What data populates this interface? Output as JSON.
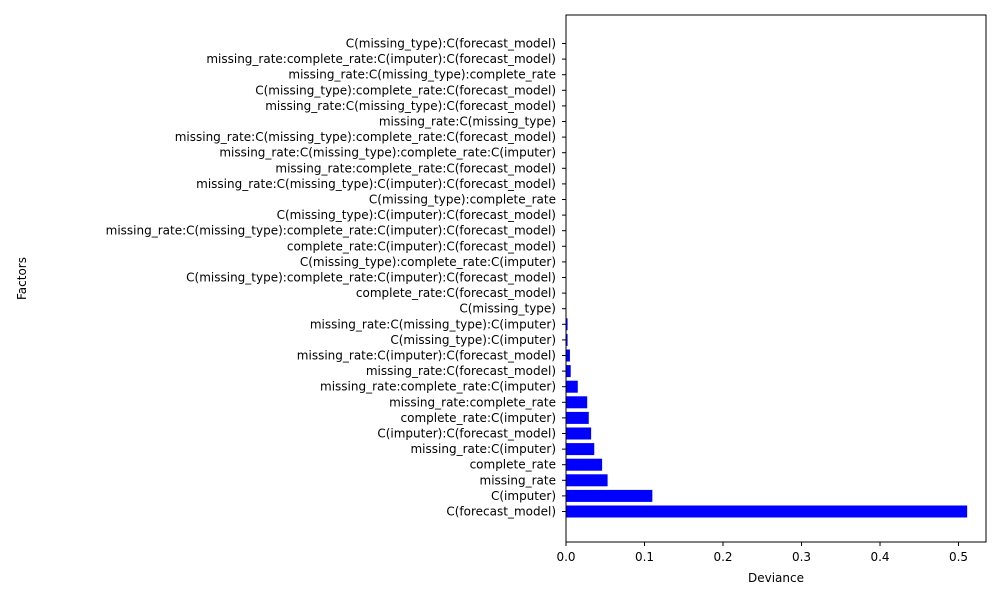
{
  "chart_data": {
    "type": "bar",
    "orientation": "horizontal",
    "xlabel": "Deviance",
    "ylabel": "Factors",
    "xlim": [
      0,
      0.535
    ],
    "xticks": [
      "0.0",
      "0.1",
      "0.2",
      "0.3",
      "0.4",
      "0.5"
    ],
    "xtick_values": [
      0,
      0.1,
      0.2,
      0.3,
      0.4,
      0.5
    ],
    "bar_color": "#0000ff",
    "grid": false,
    "categories": [
      "C(forecast_model)",
      "C(imputer)",
      "missing_rate",
      "complete_rate",
      "missing_rate:C(imputer)",
      "C(imputer):C(forecast_model)",
      "complete_rate:C(imputer)",
      "missing_rate:complete_rate",
      "missing_rate:complete_rate:C(imputer)",
      "missing_rate:C(forecast_model)",
      "missing_rate:C(imputer):C(forecast_model)",
      "C(missing_type):C(imputer)",
      "missing_rate:C(missing_type):C(imputer)",
      "C(missing_type)",
      "complete_rate:C(forecast_model)",
      "C(missing_type):complete_rate:C(imputer):C(forecast_model)",
      "C(missing_type):complete_rate:C(imputer)",
      "complete_rate:C(imputer):C(forecast_model)",
      "missing_rate:C(missing_type):complete_rate:C(imputer):C(forecast_model)",
      "C(missing_type):C(imputer):C(forecast_model)",
      "C(missing_type):complete_rate",
      "missing_rate:C(missing_type):C(imputer):C(forecast_model)",
      "missing_rate:complete_rate:C(forecast_model)",
      "missing_rate:C(missing_type):complete_rate:C(imputer)",
      "missing_rate:C(missing_type):complete_rate:C(forecast_model)",
      "missing_rate:C(missing_type)",
      "missing_rate:C(missing_type):C(forecast_model)",
      "C(missing_type):complete_rate:C(forecast_model)",
      "missing_rate:C(missing_type):complete_rate",
      "missing_rate:complete_rate:C(imputer):C(forecast_model)",
      "C(missing_type):C(forecast_model)"
    ],
    "values": [
      0.511,
      0.11,
      0.053,
      0.046,
      0.036,
      0.032,
      0.029,
      0.027,
      0.015,
      0.006,
      0.005,
      0.002,
      0.002,
      0.0005,
      0.0004,
      0.0003,
      0.0003,
      0.0003,
      0.0002,
      0.0002,
      0.0002,
      0.0001,
      0.0001,
      0.0001,
      0.0001,
      0.0001,
      0.0001,
      0.0001,
      0.0001,
      0.0001,
      0.0001
    ]
  }
}
